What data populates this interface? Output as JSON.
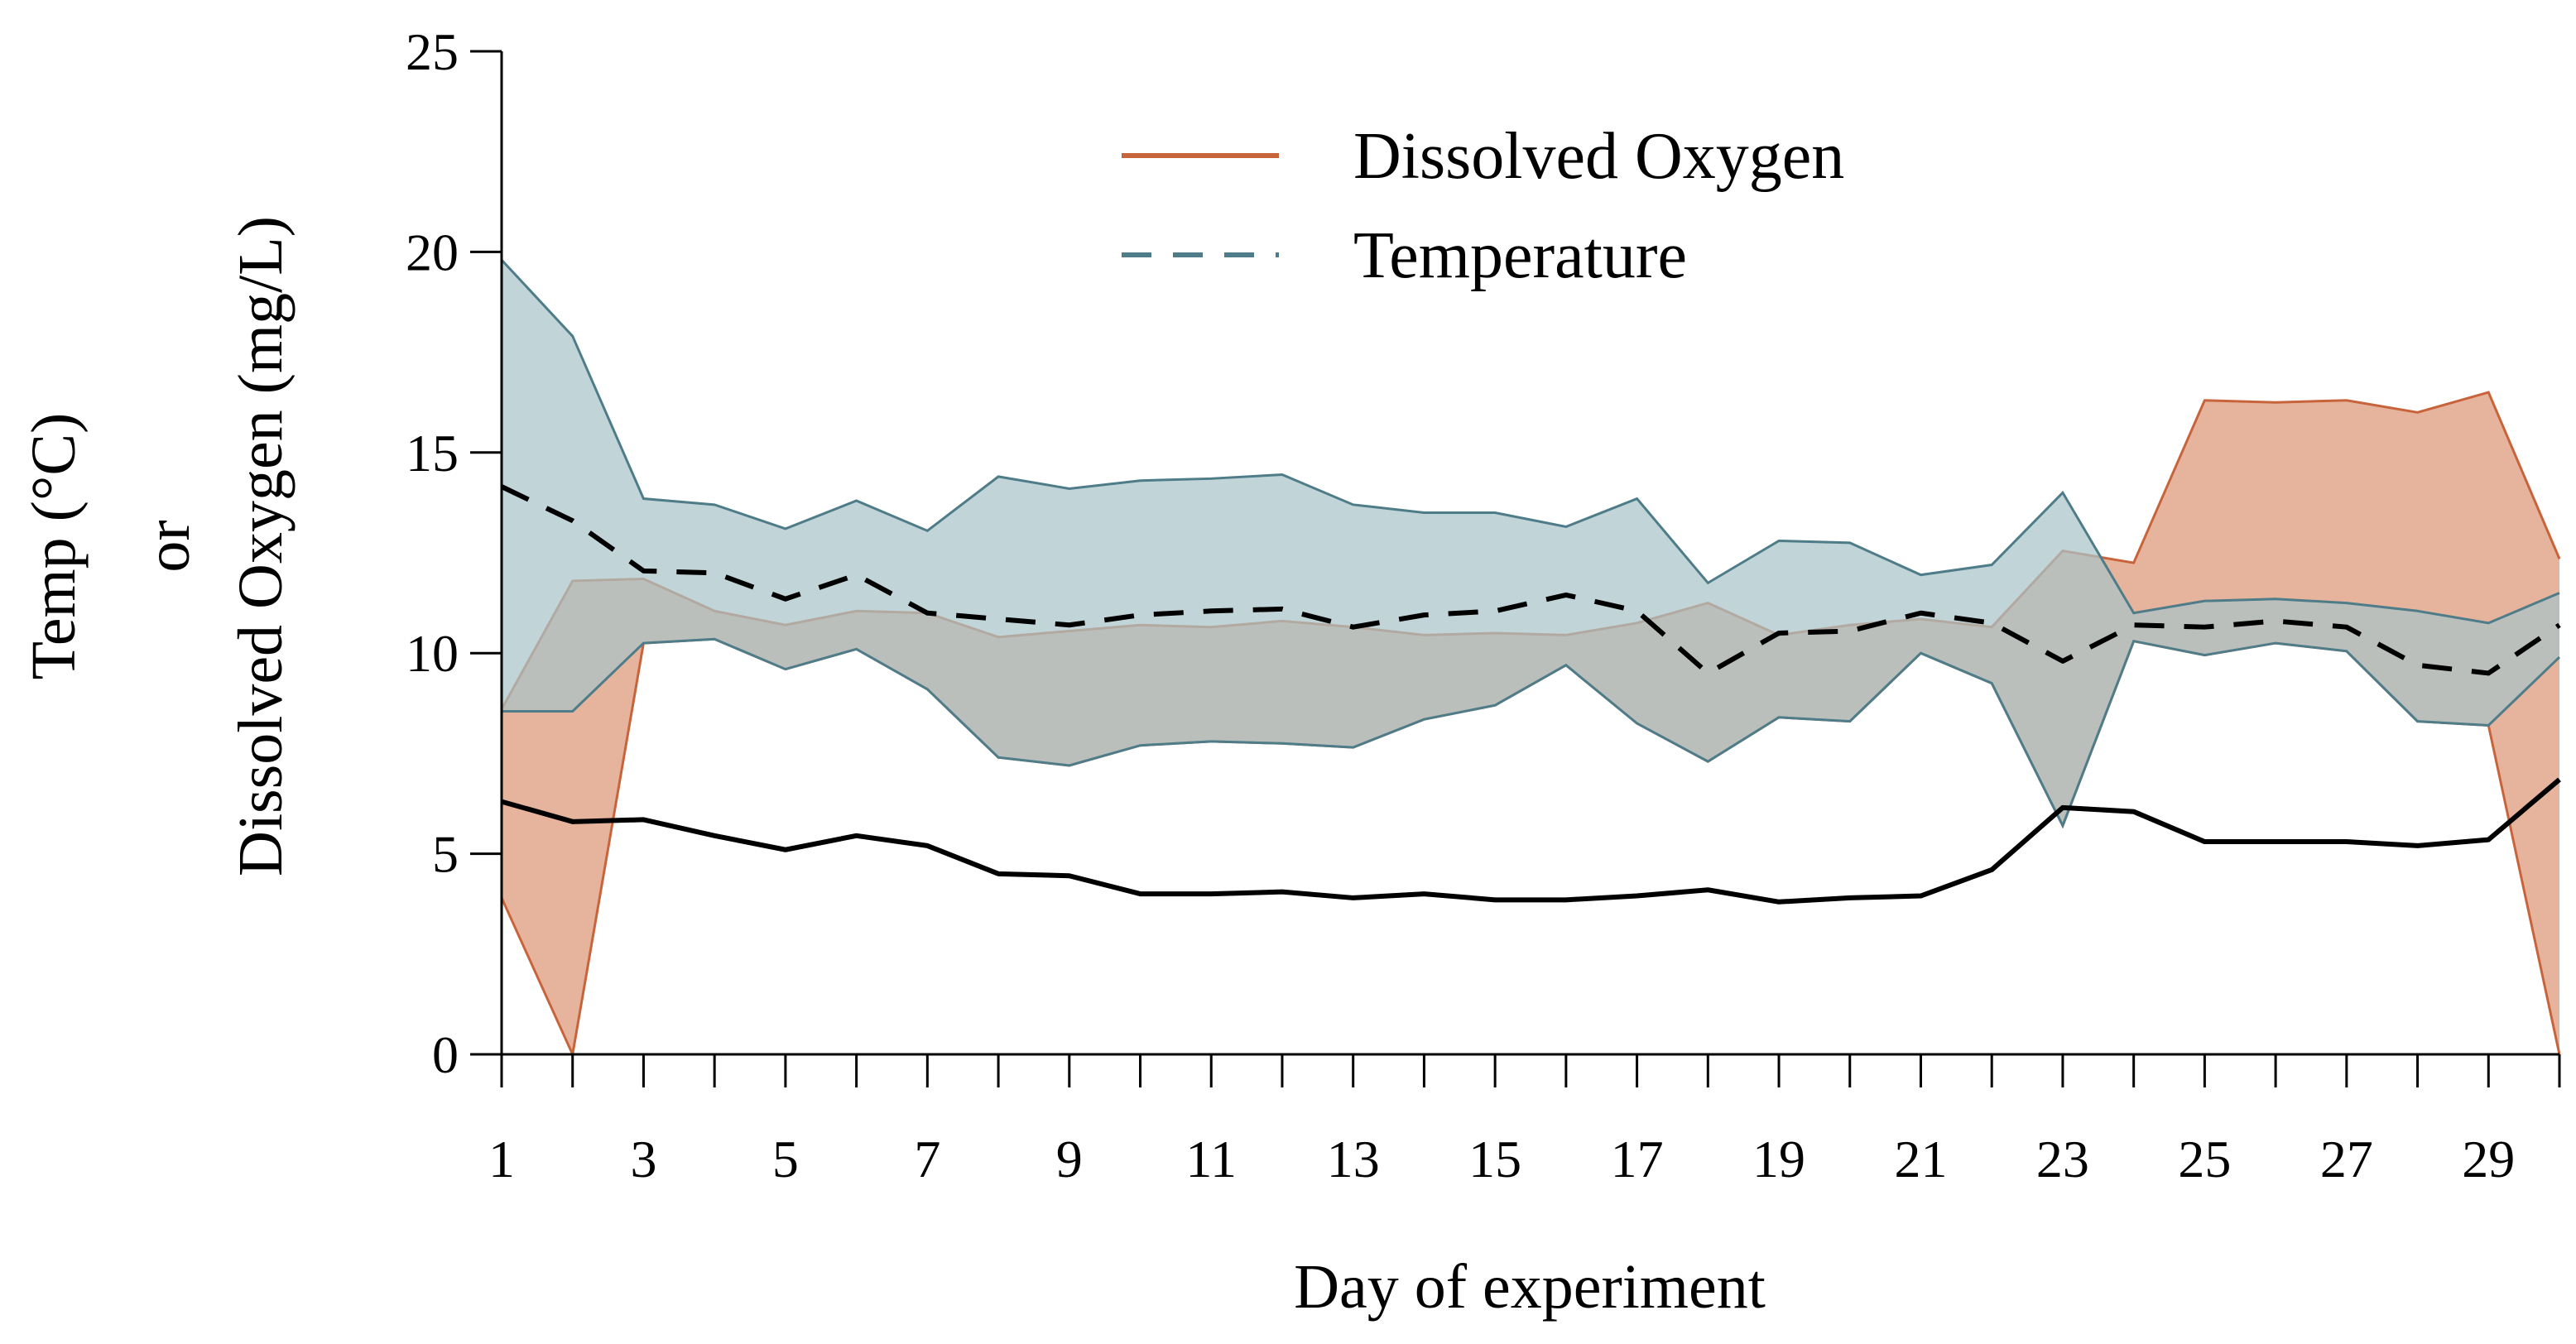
{
  "chart_data": {
    "type": "area",
    "title": "",
    "xlabel": "Day of experiment",
    "ylabel_lines": [
      "Temp (°C)",
      "or",
      "Dissolved Oxygen (mg/L)"
    ],
    "xlim": [
      1,
      30
    ],
    "ylim": [
      0,
      25
    ],
    "x_ticks": [
      1,
      2,
      3,
      4,
      5,
      6,
      7,
      8,
      9,
      10,
      11,
      12,
      13,
      14,
      15,
      16,
      17,
      18,
      19,
      20,
      21,
      22,
      23,
      24,
      25,
      26,
      27,
      28,
      29,
      30
    ],
    "x_tick_labels": [
      "1",
      "3",
      "5",
      "7",
      "9",
      "11",
      "13",
      "15",
      "17",
      "19",
      "21",
      "23",
      "25",
      "27",
      "29"
    ],
    "x_tick_label_values": [
      1,
      3,
      5,
      7,
      9,
      11,
      13,
      15,
      17,
      19,
      21,
      23,
      25,
      27,
      29
    ],
    "y_ticks": [
      0,
      5,
      10,
      15,
      20,
      25
    ],
    "y_tick_labels": [
      "0",
      "5",
      "10",
      "15",
      "20",
      "25"
    ],
    "grid": false,
    "legend": {
      "position": "top-center",
      "entries": [
        "Dissolved Oxygen",
        "Temperature"
      ]
    },
    "x": [
      1,
      2,
      3,
      4,
      5,
      6,
      7,
      8,
      9,
      10,
      11,
      12,
      13,
      14,
      15,
      16,
      17,
      18,
      19,
      20,
      21,
      22,
      23,
      24,
      25,
      26,
      27,
      28,
      29,
      30
    ],
    "series": [
      {
        "name": "Dissolved Oxygen",
        "color": "#C8643C",
        "fill": "#E6B39C",
        "line_style": "solid",
        "line_color": "#000000",
        "mean": [
          6.3,
          5.8,
          5.85,
          5.45,
          5.1,
          5.45,
          5.2,
          4.5,
          4.45,
          4.0,
          4.0,
          4.05,
          3.9,
          4.0,
          3.85,
          3.85,
          3.95,
          4.1,
          3.8,
          3.9,
          3.95,
          4.6,
          6.15,
          6.05,
          5.3,
          5.3,
          5.3,
          5.2,
          5.35,
          6.85
        ],
        "min": [
          3.9,
          0.0,
          10.25,
          10.35,
          9.6,
          10.1,
          9.1,
          7.4,
          7.2,
          7.7,
          7.8,
          7.75,
          7.65,
          8.35,
          8.7,
          9.7,
          8.25,
          7.3,
          8.4,
          8.3,
          10.0,
          9.25,
          5.7,
          10.3,
          9.95,
          10.25,
          10.05,
          8.3,
          8.2,
          0.0
        ],
        "max": [
          8.6,
          11.8,
          11.85,
          11.05,
          10.7,
          11.05,
          11.0,
          10.4,
          10.55,
          10.7,
          10.65,
          10.8,
          10.65,
          10.45,
          10.5,
          10.45,
          10.75,
          11.25,
          10.45,
          10.7,
          10.85,
          10.65,
          12.55,
          12.25,
          16.3,
          16.25,
          16.3,
          16.0,
          16.5,
          12.35
        ]
      },
      {
        "name": "Temperature",
        "color": "#4E7C88",
        "fill": "#A9C4C9",
        "line_style": "dashed",
        "line_color": "#000000",
        "mean": [
          14.15,
          13.3,
          12.05,
          12.0,
          11.35,
          11.95,
          11.0,
          10.85,
          10.7,
          10.95,
          11.05,
          11.1,
          10.65,
          10.95,
          11.05,
          11.45,
          11.05,
          9.5,
          10.5,
          10.55,
          11.0,
          10.75,
          9.8,
          10.7,
          10.65,
          10.8,
          10.65,
          9.7,
          9.5,
          10.7
        ],
        "min": [
          8.55,
          8.55,
          10.25,
          10.35,
          9.6,
          10.1,
          9.1,
          7.4,
          7.2,
          7.7,
          7.8,
          7.75,
          7.65,
          8.35,
          8.7,
          9.7,
          8.25,
          7.3,
          8.4,
          8.3,
          10.0,
          9.25,
          5.7,
          10.3,
          9.95,
          10.25,
          10.05,
          8.3,
          8.2,
          9.9
        ],
        "max": [
          19.8,
          17.9,
          13.85,
          13.7,
          13.1,
          13.8,
          13.05,
          14.4,
          14.1,
          14.3,
          14.35,
          14.45,
          13.7,
          13.5,
          13.5,
          13.15,
          13.85,
          11.75,
          12.8,
          12.75,
          11.95,
          12.2,
          14.0,
          11.0,
          11.3,
          11.35,
          11.25,
          11.05,
          10.75,
          11.5
        ]
      }
    ]
  }
}
